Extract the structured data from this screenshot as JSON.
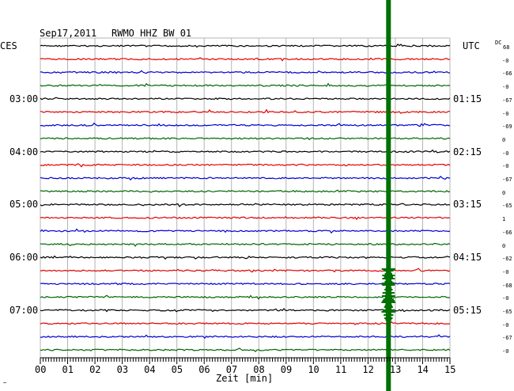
{
  "header": {
    "date": "Sep17,2011",
    "station": "RWMO HHZ BW 01"
  },
  "left_tz": "CES",
  "right_tz": "UTC",
  "dc_label": "DC",
  "left_times": [
    "03:00",
    "04:00",
    "05:00",
    "06:00",
    "07:00"
  ],
  "right_times": [
    "01:15",
    "02:15",
    "03:15",
    "04:15",
    "05:15"
  ],
  "dc_values": [
    "68",
    "-0",
    "-66",
    "-0",
    "-67",
    "-0",
    "-69",
    "0",
    "-0",
    "-0",
    "-67",
    "0",
    "-65",
    "1",
    "-66",
    "0",
    "-62",
    "-0",
    "-68",
    "-0",
    "-65",
    "-0",
    "-67",
    "-0"
  ],
  "xaxis": {
    "ticks": [
      "00",
      "01",
      "02",
      "03",
      "04",
      "05",
      "06",
      "07",
      "08",
      "09",
      "10",
      "11",
      "12",
      "13",
      "14",
      "15"
    ],
    "label": "Zeit [min]"
  },
  "trace_colors": [
    "#000000",
    "#e00000",
    "#0000d0",
    "#006400"
  ],
  "event_color": "#007000",
  "event_minute": 12.75
}
